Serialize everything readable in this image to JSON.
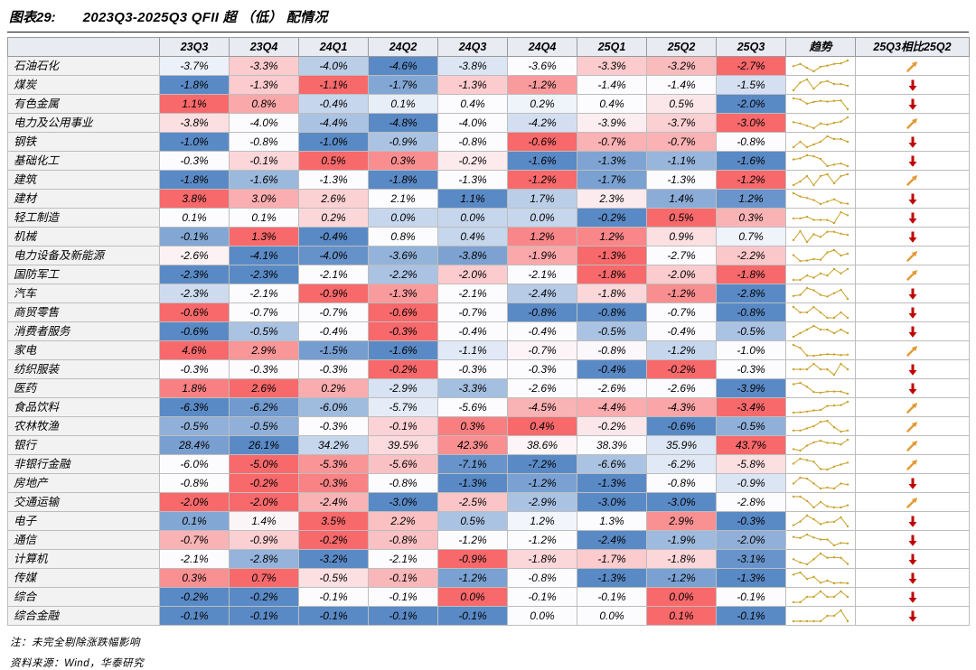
{
  "title": {
    "prefix": "图表29:",
    "text": "2023Q3-2025Q3 QFII 超 （低） 配情况"
  },
  "footer": {
    "note": "注：未完全剔除涨跌幅影响",
    "source": "资料来源：Wind，华泰研究"
  },
  "colors": {
    "heat_low": "#5A8AC6",
    "heat_mid": "#FCFCFF",
    "heat_high": "#F8696B",
    "sparkline": "#C9A22D",
    "up_arrow": "#E39A35",
    "down_arrow": "#C00000",
    "header_bg": "#E9EBF3",
    "name_col_bg": "#F2F2F2"
  },
  "chart_data": {
    "type": "heatmap",
    "title": "2023Q3-2025Q3 QFII 超 （低） 配情况",
    "unit": "%",
    "value_note": "row-wise 3-color scale: blue = row min, white = row median, red = row max",
    "columns": [
      "23Q3",
      "23Q4",
      "24Q1",
      "24Q2",
      "24Q3",
      "24Q4",
      "25Q1",
      "25Q2",
      "25Q3"
    ],
    "trend_header": "趋势",
    "compare_header": "25Q3相比25Q2",
    "rows": [
      {
        "name": "石油石化",
        "values": [
          -3.7,
          -3.3,
          -4.0,
          -4.6,
          -3.8,
          -3.6,
          -3.3,
          -3.2,
          -2.7
        ],
        "change": "up"
      },
      {
        "name": "煤炭",
        "values": [
          -1.8,
          -1.3,
          -1.1,
          -1.7,
          -1.3,
          -1.2,
          -1.4,
          -1.4,
          -1.5
        ],
        "change": "down"
      },
      {
        "name": "有色金属",
        "values": [
          1.1,
          0.8,
          -0.4,
          0.1,
          0.4,
          0.2,
          0.4,
          0.5,
          -2.0
        ],
        "change": "down"
      },
      {
        "name": "电力及公用事业",
        "values": [
          -3.8,
          -4.0,
          -4.4,
          -4.8,
          -4.0,
          -4.2,
          -3.9,
          -3.7,
          -3.0
        ],
        "change": "up"
      },
      {
        "name": "钢铁",
        "values": [
          -1.0,
          -0.8,
          -1.0,
          -0.9,
          -0.8,
          -0.6,
          -0.7,
          -0.7,
          -0.8
        ],
        "change": "down"
      },
      {
        "name": "基础化工",
        "values": [
          -0.3,
          -0.1,
          0.5,
          0.3,
          -0.2,
          -1.6,
          -1.3,
          -1.1,
          -1.6
        ],
        "change": "down"
      },
      {
        "name": "建筑",
        "values": [
          -1.8,
          -1.6,
          -1.3,
          -1.8,
          -1.3,
          -1.2,
          -1.7,
          -1.3,
          -1.2
        ],
        "change": "up"
      },
      {
        "name": "建材",
        "values": [
          3.8,
          3.0,
          2.6,
          2.1,
          1.1,
          1.7,
          2.3,
          1.4,
          1.2
        ],
        "change": "down"
      },
      {
        "name": "轻工制造",
        "values": [
          0.1,
          0.1,
          0.2,
          0.0,
          0.0,
          0.0,
          -0.2,
          0.5,
          0.3
        ],
        "change": "down"
      },
      {
        "name": "机械",
        "values": [
          -0.1,
          1.3,
          -0.4,
          0.8,
          0.4,
          1.2,
          1.2,
          0.9,
          0.7
        ],
        "change": "down"
      },
      {
        "name": "电力设备及新能源",
        "values": [
          -2.6,
          -4.1,
          -4.0,
          -3.6,
          -3.8,
          -1.9,
          -1.3,
          -2.7,
          -2.2
        ],
        "change": "up"
      },
      {
        "name": "国防军工",
        "values": [
          -2.3,
          -2.3,
          -2.1,
          -2.2,
          -2.0,
          -2.1,
          -1.8,
          -2.0,
          -1.8
        ],
        "change": "up"
      },
      {
        "name": "汽车",
        "values": [
          -2.3,
          -2.1,
          -0.9,
          -1.3,
          -2.1,
          -2.4,
          -1.8,
          -1.2,
          -2.8
        ],
        "change": "down"
      },
      {
        "name": "商贸零售",
        "values": [
          -0.6,
          -0.7,
          -0.7,
          -0.6,
          -0.7,
          -0.8,
          -0.8,
          -0.7,
          -0.8
        ],
        "change": "down"
      },
      {
        "name": "消费者服务",
        "values": [
          -0.6,
          -0.5,
          -0.4,
          -0.3,
          -0.4,
          -0.4,
          -0.5,
          -0.4,
          -0.5
        ],
        "change": "down"
      },
      {
        "name": "家电",
        "values": [
          4.6,
          2.9,
          -1.5,
          -1.6,
          -1.1,
          -0.7,
          -0.8,
          -1.2,
          -1.0
        ],
        "change": "up"
      },
      {
        "name": "纺织服装",
        "values": [
          -0.3,
          -0.3,
          -0.3,
          -0.2,
          -0.3,
          -0.3,
          -0.4,
          -0.2,
          -0.3
        ],
        "change": "down"
      },
      {
        "name": "医药",
        "values": [
          1.8,
          2.6,
          0.2,
          -2.9,
          -3.3,
          -2.6,
          -2.6,
          -2.6,
          -3.9
        ],
        "change": "down"
      },
      {
        "name": "食品饮料",
        "values": [
          -6.3,
          -6.2,
          -6.0,
          -5.7,
          -5.6,
          -4.5,
          -4.4,
          -4.3,
          -3.4
        ],
        "change": "up"
      },
      {
        "name": "农林牧渔",
        "values": [
          -0.5,
          -0.5,
          -0.3,
          -0.1,
          0.3,
          0.4,
          -0.2,
          -0.6,
          -0.5
        ],
        "change": "up"
      },
      {
        "name": "银行",
        "values": [
          28.4,
          26.1,
          34.2,
          39.5,
          42.3,
          38.6,
          38.3,
          35.9,
          43.7
        ],
        "change": "up"
      },
      {
        "name": "非银行金融",
        "values": [
          -6.0,
          -5.0,
          -5.3,
          -5.6,
          -7.1,
          -7.2,
          -6.6,
          -6.2,
          -5.8
        ],
        "change": "up"
      },
      {
        "name": "房地产",
        "values": [
          -0.8,
          -0.2,
          -0.3,
          -0.8,
          -1.3,
          -1.2,
          -1.3,
          -0.8,
          -0.9
        ],
        "change": "down"
      },
      {
        "name": "交通运输",
        "values": [
          -2.0,
          -2.0,
          -2.4,
          -3.0,
          -2.5,
          -2.9,
          -3.0,
          -3.0,
          -2.8
        ],
        "change": "up"
      },
      {
        "name": "电子",
        "values": [
          0.1,
          1.4,
          3.5,
          2.2,
          0.5,
          1.2,
          1.3,
          2.9,
          -0.3
        ],
        "change": "down"
      },
      {
        "name": "通信",
        "values": [
          -0.7,
          -0.9,
          -0.2,
          -0.8,
          -1.2,
          -1.2,
          -2.4,
          -1.9,
          -2.0
        ],
        "change": "down"
      },
      {
        "name": "计算机",
        "values": [
          -2.1,
          -2.8,
          -3.2,
          -2.1,
          -0.9,
          -1.8,
          -1.7,
          -1.8,
          -3.1
        ],
        "change": "down"
      },
      {
        "name": "传媒",
        "values": [
          0.3,
          0.7,
          -0.5,
          -0.1,
          -1.2,
          -0.8,
          -1.3,
          -1.2,
          -1.3
        ],
        "change": "down"
      },
      {
        "name": "综合",
        "values": [
          -0.2,
          -0.2,
          -0.1,
          -0.1,
          0.0,
          -0.1,
          -0.1,
          0.0,
          -0.1
        ],
        "change": "down"
      },
      {
        "name": "综合金融",
        "values": [
          -0.1,
          -0.1,
          -0.1,
          -0.1,
          -0.1,
          0.0,
          0.0,
          0.1,
          -0.1
        ],
        "change": "down"
      }
    ]
  }
}
